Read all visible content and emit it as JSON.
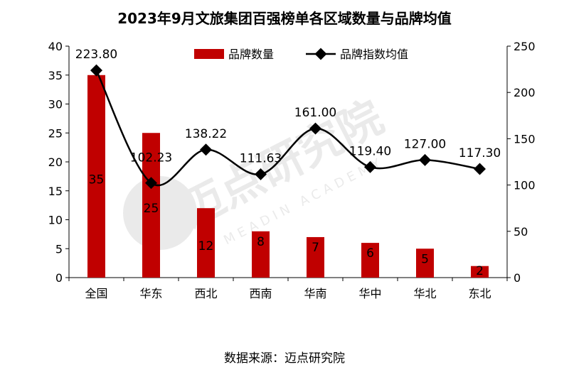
{
  "chart_data": {
    "type": "bar+line",
    "title": "2023年9月文旅集团百强榜单各区域数量与品牌均值",
    "source": "数据来源：迈点研究院",
    "watermark": {
      "text": "迈点研究院",
      "subtext": "MEADIN ACADEMY"
    },
    "categories": [
      "全国",
      "华东",
      "西北",
      "西南",
      "华南",
      "华中",
      "华北",
      "东北"
    ],
    "series": [
      {
        "name": "品牌数量",
        "type": "bar",
        "axis": "left",
        "values": [
          35,
          25,
          12,
          8,
          7,
          6,
          5,
          2
        ],
        "labels": [
          "35",
          "25",
          "12",
          "8",
          "7",
          "6",
          "5",
          "2"
        ],
        "color": "#c00000"
      },
      {
        "name": "品牌指数均值",
        "type": "line",
        "axis": "right",
        "values": [
          223.8,
          102.23,
          138.22,
          111.63,
          161.0,
          119.4,
          127.0,
          117.3
        ],
        "labels": [
          "223.80",
          "102.23",
          "138.22",
          "111.63",
          "161.00",
          "119.40",
          "127.00",
          "117.30"
        ],
        "color": "#000000"
      }
    ],
    "y_left": {
      "min": 0,
      "max": 40,
      "ticks": [
        "0",
        "5",
        "10",
        "15",
        "20",
        "25",
        "30",
        "35",
        "40"
      ]
    },
    "y_right": {
      "min": 0,
      "max": 250,
      "ticks": [
        "0",
        "50",
        "100",
        "150",
        "200",
        "250"
      ]
    },
    "grid": false,
    "legend_position": "top"
  }
}
